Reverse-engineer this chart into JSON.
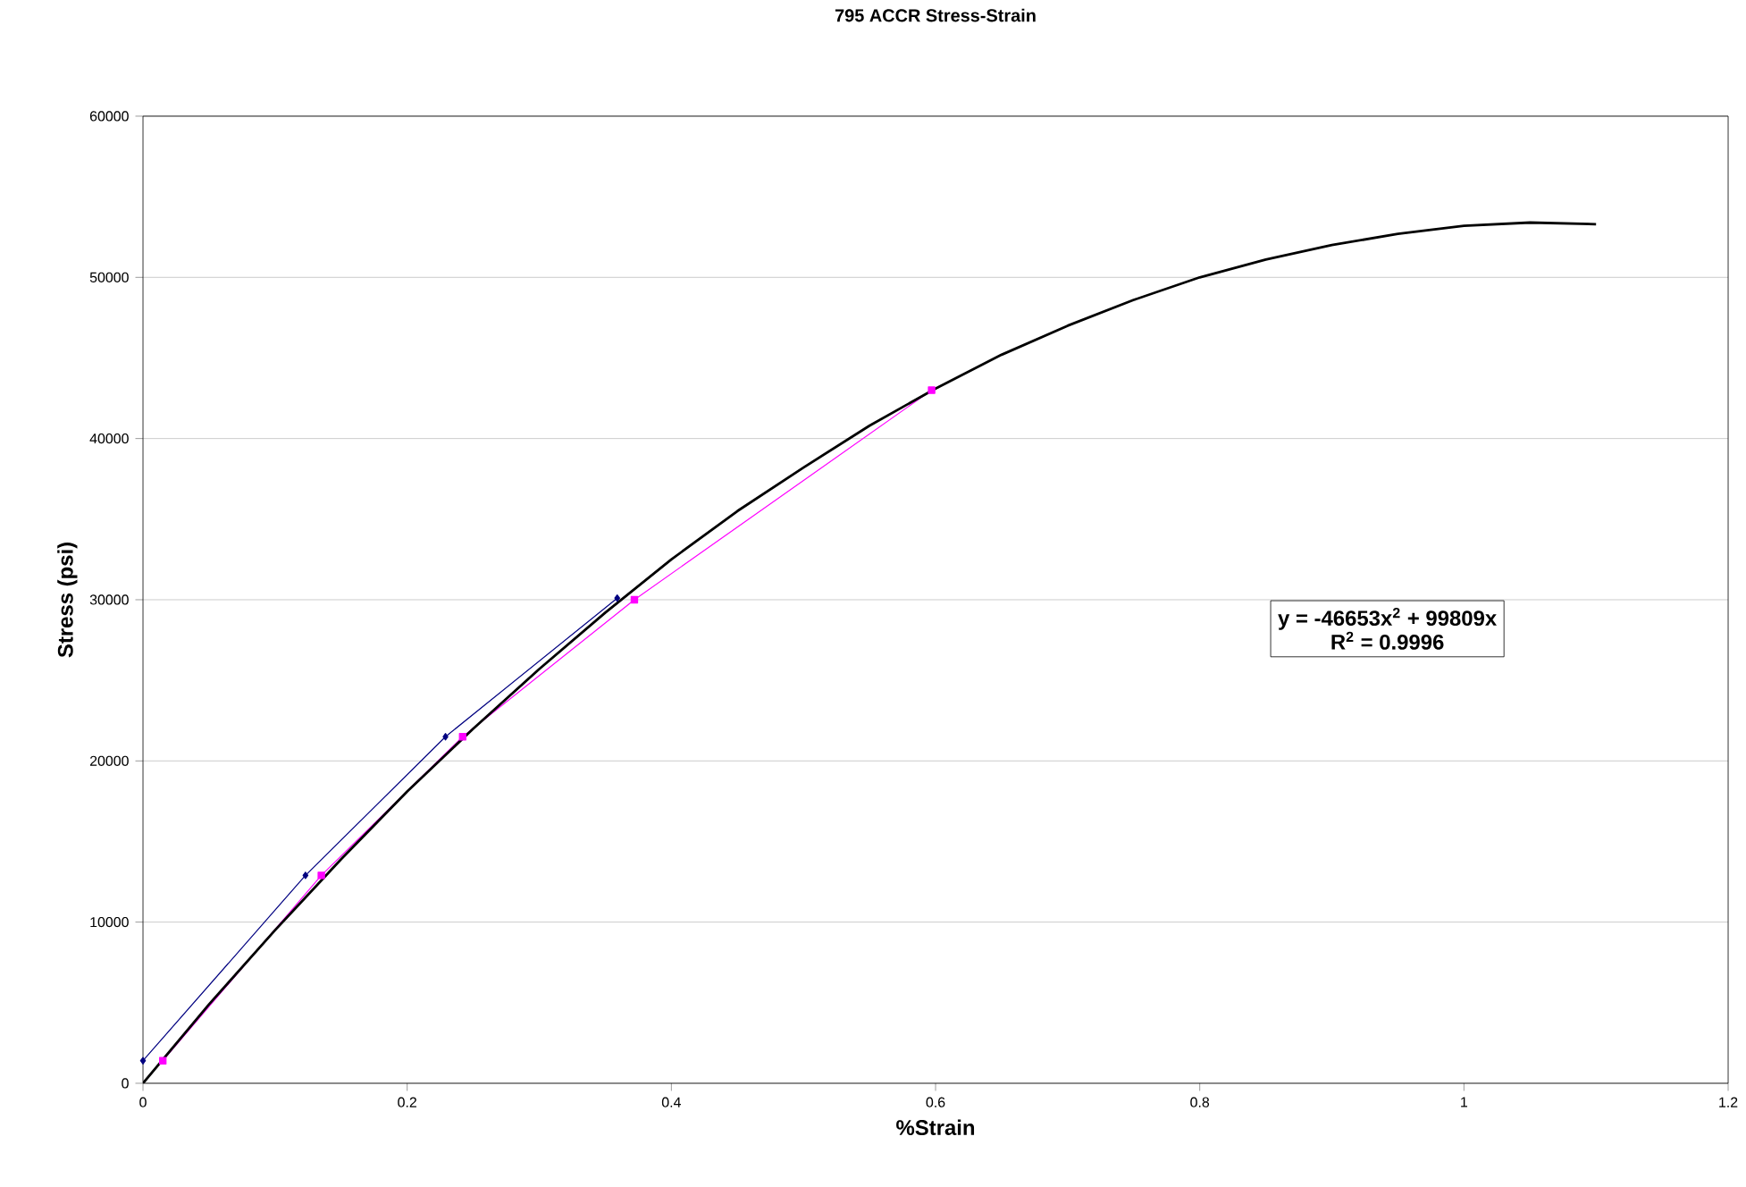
{
  "chart_data": {
    "type": "line",
    "title": "795 ACCR Stress-Strain",
    "xlabel": "%Strain",
    "ylabel": "Stress (psi)",
    "xlim": [
      0,
      1.2
    ],
    "xticks": [
      0,
      0.2,
      0.4,
      0.6,
      0.8,
      1,
      1.2
    ],
    "ylim": [
      0,
      60000
    ],
    "yticks": [
      0,
      10000,
      20000,
      30000,
      40000,
      50000,
      60000
    ],
    "grid": "y",
    "annotations": [
      "y = -46653x$^{2}$ + 99809x",
      "R$^{2}$ = 0.9996"
    ],
    "series": [
      {
        "color": "#000080",
        "marker": "diamond",
        "x": [
          0,
          0.123,
          0.229,
          0.359
        ],
        "values": [
          1400,
          12900,
          21500,
          30100
        ]
      },
      {
        "color": "#ff00ff",
        "marker": "square",
        "x": [
          0.015,
          0.135,
          0.242,
          0.372,
          0.597
        ],
        "values": [
          1400,
          12900,
          21500,
          30000,
          43000
        ]
      },
      {
        "color": "#000000",
        "marker": "none",
        "x": [
          0,
          0.05,
          0.1,
          0.15,
          0.2,
          0.25,
          0.3,
          0.35,
          0.4,
          0.45,
          0.5,
          0.55,
          0.6,
          0.65,
          0.7,
          0.75,
          0.8,
          0.85,
          0.9,
          0.95,
          1.0,
          1.05,
          1.1
        ],
        "values": [
          0,
          4900,
          9500,
          13900,
          18100,
          22000,
          25700,
          29200,
          32500,
          35500,
          38200,
          40800,
          43100,
          45200,
          47000,
          48600,
          50000,
          51100,
          52000,
          52700,
          53200,
          53400,
          53300
        ]
      }
    ]
  }
}
